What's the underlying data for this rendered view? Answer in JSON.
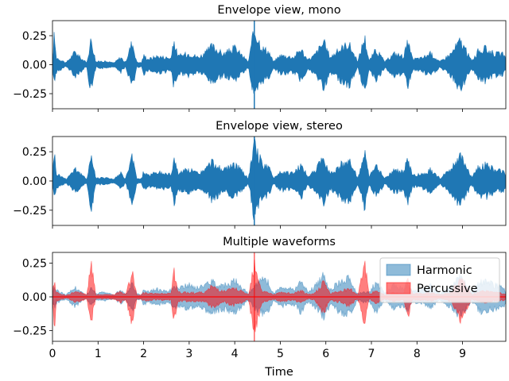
{
  "chart_data": [
    {
      "type": "area",
      "title": "Envelope view, mono",
      "xlabel": "",
      "ylabel": "",
      "xlim": [
        0,
        9.95
      ],
      "ylim": [
        -0.38,
        0.38
      ],
      "yticks": [
        {
          "value": 0.25,
          "label": "0.25"
        },
        {
          "value": 0.0,
          "label": "0.00"
        },
        {
          "value": -0.25,
          "label": "−0.25"
        }
      ],
      "xticks_labeled": false,
      "grid": false,
      "marker_line_x": 4.43,
      "series": [
        {
          "color": "#1f77b4",
          "envelope_x": [
            0,
            0.04,
            0.08,
            0.3,
            0.5,
            0.6,
            0.75,
            0.85,
            0.95,
            1.1,
            1.35,
            1.5,
            1.6,
            1.75,
            1.85,
            1.95,
            2.0,
            2.1,
            2.3,
            2.6,
            2.67,
            2.75,
            3.0,
            3.2,
            3.35,
            3.5,
            3.75,
            4.0,
            4.3,
            4.43,
            4.6,
            4.75,
            4.85,
            5.0,
            5.3,
            5.45,
            5.6,
            5.75,
            5.95,
            6.1,
            6.3,
            6.5,
            6.7,
            6.85,
            6.95,
            7.1,
            7.3,
            7.5,
            7.7,
            7.8,
            7.9,
            8.1,
            8.3,
            8.5,
            8.75,
            8.95,
            9.2,
            9.35,
            9.5,
            9.7,
            9.9,
            9.95
          ],
          "envelope_upper": [
            0.05,
            0.33,
            0.08,
            0.02,
            0.14,
            0.08,
            0.02,
            0.28,
            0.03,
            0.04,
            0.02,
            0.08,
            0.02,
            0.25,
            0.03,
            0.02,
            0.1,
            0.06,
            0.09,
            0.07,
            0.25,
            0.09,
            0.12,
            0.08,
            0.12,
            0.2,
            0.11,
            0.18,
            0.03,
            0.38,
            0.18,
            0.14,
            0.03,
            0.1,
            0.08,
            0.17,
            0.05,
            0.1,
            0.24,
            0.08,
            0.16,
            0.23,
            0.03,
            0.3,
            0.04,
            0.16,
            0.03,
            0.12,
            0.09,
            0.24,
            0.06,
            0.07,
            0.12,
            0.03,
            0.12,
            0.26,
            0.04,
            0.15,
            0.17,
            0.12,
            0.11,
            0.05
          ],
          "envelope_lower": [
            -0.05,
            -0.22,
            -0.08,
            -0.02,
            -0.12,
            -0.08,
            -0.02,
            -0.31,
            -0.03,
            -0.04,
            -0.02,
            -0.08,
            -0.02,
            -0.24,
            -0.03,
            -0.02,
            -0.1,
            -0.06,
            -0.09,
            -0.07,
            -0.24,
            -0.09,
            -0.12,
            -0.08,
            -0.12,
            -0.2,
            -0.11,
            -0.16,
            -0.03,
            -0.38,
            -0.18,
            -0.14,
            -0.03,
            -0.1,
            -0.08,
            -0.17,
            -0.05,
            -0.1,
            -0.24,
            -0.08,
            -0.16,
            -0.23,
            -0.03,
            -0.28,
            -0.04,
            -0.16,
            -0.03,
            -0.12,
            -0.09,
            -0.24,
            -0.06,
            -0.07,
            -0.12,
            -0.03,
            -0.12,
            -0.26,
            -0.04,
            -0.15,
            -0.17,
            -0.12,
            -0.11,
            -0.05
          ]
        }
      ]
    },
    {
      "type": "area",
      "title": "Envelope view, stereo",
      "xlabel": "",
      "ylabel": "",
      "xlim": [
        0,
        9.95
      ],
      "ylim": [
        -0.38,
        0.38
      ],
      "yticks": [
        {
          "value": 0.25,
          "label": "0.25"
        },
        {
          "value": 0.0,
          "label": "0.00"
        },
        {
          "value": -0.25,
          "label": "−0.25"
        }
      ],
      "xticks_labeled": false,
      "grid": false,
      "marker_line_x": 4.43,
      "series": [
        {
          "color": "#1f77b4",
          "envelope_x": [
            0,
            0.04,
            0.08,
            0.3,
            0.5,
            0.6,
            0.75,
            0.85,
            0.95,
            1.1,
            1.35,
            1.5,
            1.6,
            1.75,
            1.85,
            1.95,
            2.0,
            2.1,
            2.3,
            2.6,
            2.67,
            2.75,
            3.0,
            3.2,
            3.35,
            3.5,
            3.75,
            4.0,
            4.3,
            4.43,
            4.6,
            4.75,
            4.85,
            5.0,
            5.3,
            5.45,
            5.6,
            5.75,
            5.95,
            6.1,
            6.3,
            6.5,
            6.7,
            6.85,
            6.95,
            7.1,
            7.3,
            7.5,
            7.7,
            7.8,
            7.9,
            8.1,
            8.3,
            8.5,
            8.75,
            8.95,
            9.2,
            9.35,
            9.5,
            9.7,
            9.9,
            9.95
          ],
          "envelope_upper": [
            0.05,
            0.33,
            0.08,
            0.02,
            0.14,
            0.08,
            0.02,
            0.28,
            0.03,
            0.04,
            0.02,
            0.08,
            0.02,
            0.25,
            0.03,
            0.02,
            0.1,
            0.06,
            0.09,
            0.07,
            0.25,
            0.09,
            0.12,
            0.08,
            0.12,
            0.2,
            0.11,
            0.18,
            0.03,
            0.38,
            0.18,
            0.14,
            0.03,
            0.1,
            0.08,
            0.17,
            0.05,
            0.1,
            0.24,
            0.08,
            0.16,
            0.23,
            0.03,
            0.3,
            0.04,
            0.16,
            0.03,
            0.12,
            0.09,
            0.24,
            0.06,
            0.07,
            0.12,
            0.03,
            0.12,
            0.26,
            0.04,
            0.15,
            0.17,
            0.12,
            0.11,
            0.05
          ],
          "envelope_lower": [
            -0.05,
            -0.22,
            -0.08,
            -0.02,
            -0.12,
            -0.08,
            -0.02,
            -0.31,
            -0.03,
            -0.04,
            -0.02,
            -0.08,
            -0.02,
            -0.24,
            -0.03,
            -0.02,
            -0.1,
            -0.06,
            -0.09,
            -0.07,
            -0.24,
            -0.09,
            -0.12,
            -0.08,
            -0.12,
            -0.2,
            -0.11,
            -0.16,
            -0.03,
            -0.38,
            -0.18,
            -0.14,
            -0.03,
            -0.1,
            -0.08,
            -0.17,
            -0.05,
            -0.1,
            -0.24,
            -0.08,
            -0.16,
            -0.23,
            -0.03,
            -0.28,
            -0.04,
            -0.16,
            -0.03,
            -0.12,
            -0.09,
            -0.24,
            -0.06,
            -0.07,
            -0.12,
            -0.03,
            -0.12,
            -0.26,
            -0.04,
            -0.15,
            -0.17,
            -0.12,
            -0.11,
            -0.05
          ]
        }
      ]
    },
    {
      "type": "area",
      "title": "Multiple waveforms",
      "xlabel": "Time",
      "ylabel": "",
      "xlim": [
        0,
        9.95
      ],
      "ylim": [
        -0.33,
        0.33
      ],
      "yticks": [
        {
          "value": 0.25,
          "label": "0.25"
        },
        {
          "value": 0.0,
          "label": "0.00"
        },
        {
          "value": -0.25,
          "label": "−0.25"
        }
      ],
      "xticks": [
        0,
        1,
        2,
        3,
        4,
        5,
        6,
        7,
        8,
        9
      ],
      "xtick_labels": [
        "0",
        "1",
        "2",
        "3",
        "4",
        "5",
        "6",
        "7",
        "8",
        "9"
      ],
      "xticks_labeled": true,
      "grid": false,
      "legend": "upper-right",
      "marker_line_x": 4.43,
      "series": [
        {
          "name": "Harmonic",
          "color": "#1f77b4",
          "alpha": 0.5,
          "envelope_x": [
            0,
            0.04,
            0.08,
            0.3,
            0.5,
            0.6,
            0.75,
            0.85,
            0.95,
            1.1,
            1.35,
            1.5,
            1.6,
            1.75,
            1.85,
            1.95,
            2.0,
            2.1,
            2.3,
            2.6,
            2.67,
            2.75,
            3.0,
            3.2,
            3.35,
            3.5,
            3.75,
            4.0,
            4.3,
            4.43,
            4.6,
            4.75,
            4.85,
            5.0,
            5.3,
            5.45,
            5.6,
            5.75,
            5.95,
            6.1,
            6.3,
            6.5,
            6.7,
            6.85,
            6.95,
            7.1,
            7.3,
            7.5,
            7.7,
            7.8,
            7.9,
            8.1,
            8.3,
            8.5,
            8.75,
            8.95,
            9.2,
            9.35,
            9.5,
            9.7,
            9.9,
            9.95
          ],
          "envelope_upper": [
            0.04,
            0.1,
            0.06,
            0.02,
            0.09,
            0.05,
            0.02,
            0.08,
            0.03,
            0.04,
            0.02,
            0.06,
            0.02,
            0.12,
            0.03,
            0.02,
            0.07,
            0.05,
            0.07,
            0.06,
            0.1,
            0.08,
            0.11,
            0.08,
            0.12,
            0.14,
            0.11,
            0.15,
            0.03,
            0.1,
            0.16,
            0.13,
            0.03,
            0.09,
            0.07,
            0.14,
            0.05,
            0.09,
            0.2,
            0.07,
            0.14,
            0.17,
            0.03,
            0.05,
            0.04,
            0.14,
            0.03,
            0.11,
            0.08,
            0.13,
            0.05,
            0.06,
            0.1,
            0.03,
            0.1,
            0.18,
            0.04,
            0.13,
            0.14,
            0.11,
            0.1,
            0.05
          ],
          "envelope_lower": [
            -0.04,
            -0.1,
            -0.06,
            -0.02,
            -0.09,
            -0.05,
            -0.02,
            -0.08,
            -0.03,
            -0.04,
            -0.02,
            -0.06,
            -0.02,
            -0.12,
            -0.03,
            -0.02,
            -0.07,
            -0.05,
            -0.07,
            -0.06,
            -0.1,
            -0.08,
            -0.11,
            -0.08,
            -0.12,
            -0.14,
            -0.11,
            -0.15,
            -0.03,
            -0.1,
            -0.16,
            -0.13,
            -0.03,
            -0.09,
            -0.07,
            -0.14,
            -0.05,
            -0.09,
            -0.2,
            -0.07,
            -0.14,
            -0.17,
            -0.03,
            -0.05,
            -0.04,
            -0.14,
            -0.03,
            -0.11,
            -0.08,
            -0.13,
            -0.05,
            -0.06,
            -0.1,
            -0.03,
            -0.1,
            -0.18,
            -0.04,
            -0.13,
            -0.14,
            -0.11,
            -0.1,
            -0.05
          ]
        },
        {
          "name": "Percussive",
          "color": "#ff0000",
          "alpha": 0.5,
          "envelope_x": [
            0,
            0.04,
            0.08,
            0.3,
            0.5,
            0.6,
            0.75,
            0.85,
            0.95,
            1.1,
            1.35,
            1.5,
            1.6,
            1.75,
            1.85,
            1.95,
            2.0,
            2.1,
            2.3,
            2.6,
            2.67,
            2.75,
            3.0,
            3.2,
            3.35,
            3.5,
            3.75,
            4.0,
            4.3,
            4.43,
            4.6,
            4.75,
            4.85,
            5.0,
            5.3,
            5.45,
            5.6,
            5.75,
            5.95,
            6.1,
            6.3,
            6.5,
            6.7,
            6.85,
            6.95,
            7.1,
            7.3,
            7.5,
            7.7,
            7.8,
            7.9,
            8.1,
            8.3,
            8.5,
            8.75,
            8.95,
            9.2,
            9.35,
            9.5,
            9.7,
            9.9,
            9.95
          ],
          "envelope_upper": [
            0.03,
            0.15,
            0.04,
            0.01,
            0.05,
            0.04,
            0.02,
            0.3,
            0.02,
            0.02,
            0.02,
            0.05,
            0.02,
            0.22,
            0.02,
            0.02,
            0.04,
            0.03,
            0.03,
            0.03,
            0.24,
            0.04,
            0.04,
            0.04,
            0.04,
            0.1,
            0.05,
            0.08,
            0.02,
            0.33,
            0.05,
            0.04,
            0.02,
            0.04,
            0.03,
            0.06,
            0.02,
            0.03,
            0.14,
            0.03,
            0.05,
            0.08,
            0.02,
            0.33,
            0.02,
            0.06,
            0.02,
            0.04,
            0.03,
            0.16,
            0.03,
            0.03,
            0.04,
            0.02,
            0.04,
            0.18,
            0.02,
            0.04,
            0.06,
            0.04,
            0.03,
            0.02
          ],
          "envelope_lower": [
            -0.03,
            -0.3,
            -0.04,
            -0.01,
            -0.05,
            -0.04,
            -0.02,
            -0.22,
            -0.02,
            -0.02,
            -0.02,
            -0.05,
            -0.02,
            -0.24,
            -0.02,
            -0.02,
            -0.04,
            -0.03,
            -0.03,
            -0.03,
            -0.25,
            -0.04,
            -0.04,
            -0.04,
            -0.04,
            -0.1,
            -0.05,
            -0.08,
            -0.02,
            -0.33,
            -0.05,
            -0.04,
            -0.02,
            -0.04,
            -0.03,
            -0.06,
            -0.02,
            -0.03,
            -0.14,
            -0.03,
            -0.05,
            -0.08,
            -0.02,
            -0.25,
            -0.02,
            -0.06,
            -0.02,
            -0.04,
            -0.03,
            -0.18,
            -0.03,
            -0.03,
            -0.04,
            -0.02,
            -0.04,
            -0.22,
            -0.02,
            -0.04,
            -0.06,
            -0.04,
            -0.03,
            -0.02
          ]
        }
      ]
    }
  ]
}
